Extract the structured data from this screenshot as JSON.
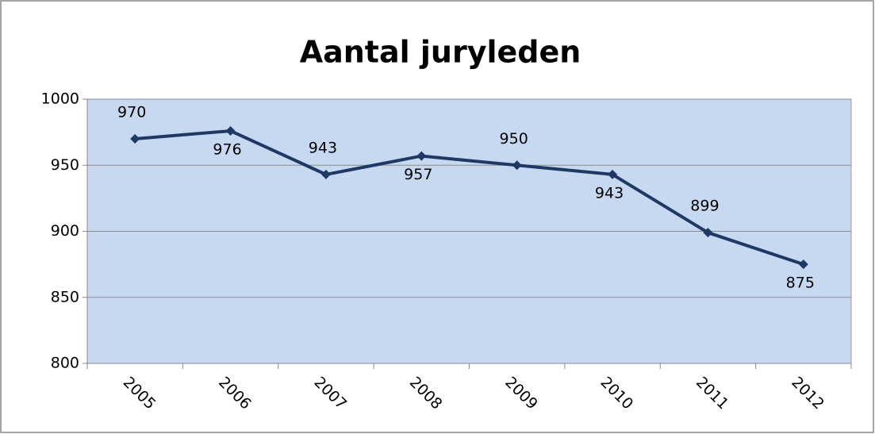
{
  "chart_data": {
    "type": "line",
    "title": "Aantal juryleden",
    "categories": [
      "2005",
      "2006",
      "2007",
      "2008",
      "2009",
      "2010",
      "2011",
      "2012"
    ],
    "series": [
      {
        "name": "Aantal juryleden",
        "color": "#1f3864",
        "values": [
          970,
          976,
          943,
          957,
          950,
          943,
          899,
          875
        ]
      }
    ],
    "ylim": [
      800,
      1000
    ],
    "yticks": [
      800,
      850,
      900,
      950,
      1000
    ],
    "grid": true,
    "plot_background": "#c6d9f1"
  }
}
